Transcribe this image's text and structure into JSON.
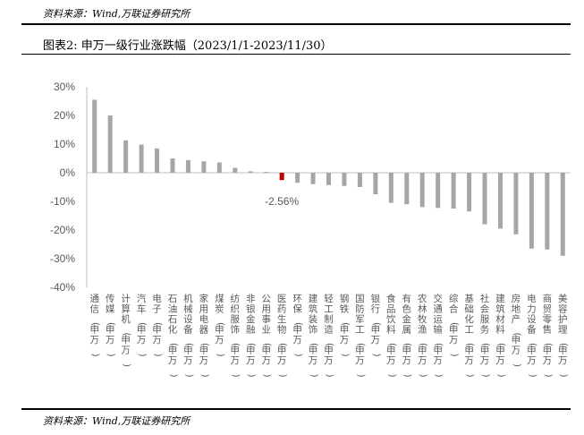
{
  "header": {
    "source_top": "资料来源：Wind,万联证券研究所",
    "title": "图表2:  申万一级行业涨跌幅（2023/1/1-2023/11/30）",
    "source_bottom": "资料来源：Wind,万联证券研究所"
  },
  "colors": {
    "bar": "#a6a6a6",
    "highlight": "#c00000",
    "axis": "#bfbfbf",
    "text": "#595959"
  },
  "chart_data": {
    "type": "bar",
    "ylim": [
      -40,
      30
    ],
    "yticks": [
      "30%",
      "20%",
      "10%",
      "0%",
      "-10%",
      "-20%",
      "-30%",
      "-40%"
    ],
    "ytick_values": [
      30,
      20,
      10,
      0,
      -10,
      -20,
      -30,
      -40
    ],
    "categories": [
      "通信(申万)",
      "传媒(申万)",
      "计算机(申万)",
      "汽车(申万)",
      "电子(申万)",
      "石油石化(申万)",
      "机械设备(申万)",
      "家用电器(申万)",
      "煤炭(申万)",
      "纺织服饰(申万)",
      "非银金融(申万)",
      "公用事业(申万)",
      "医药生物(申万)",
      "环保(申万)",
      "建筑装饰(申万)",
      "轻工制造(申万)",
      "钢铁(申万)",
      "国防军工(申万)",
      "银行(申万)",
      "食品饮料(申万)",
      "有色金属(申万)",
      "农林牧渔(申万)",
      "交通运输(申万)",
      "综合(申万)",
      "基础化工(申万)",
      "社会服务(申万)",
      "建筑材料(申万)",
      "房地产(申万)",
      "电力设备(申万)",
      "商贸零售(申万)",
      "美容护理(申万)"
    ],
    "values": [
      25.5,
      20.0,
      11.3,
      9.8,
      8.5,
      5.0,
      4.4,
      4.0,
      3.6,
      1.7,
      0.5,
      0.3,
      -2.56,
      -3.5,
      -4.0,
      -4.3,
      -4.6,
      -5.0,
      -7.5,
      -10.5,
      -11.0,
      -12.0,
      -12.3,
      -12.5,
      -13.5,
      -18.0,
      -19.5,
      -21.5,
      -26.5,
      -26.8,
      -29.0
    ],
    "highlight_index": 12,
    "data_label": "-2.56%"
  }
}
